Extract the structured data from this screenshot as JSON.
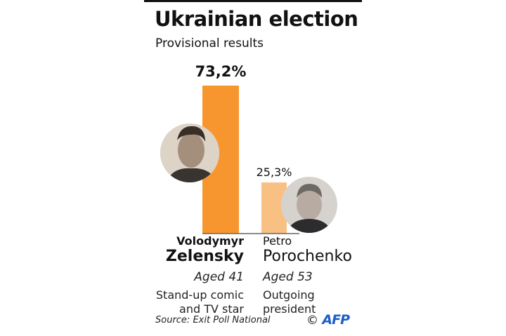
{
  "title": "Ukrainian election",
  "subtitle": "Provisional results",
  "source": "Source: Exit Poll National",
  "credit": {
    "symbol": "©",
    "agency": "AFP"
  },
  "colors": {
    "zelensky": "#f7962f",
    "poroshenko": "#f9c083",
    "baseline": "#666666",
    "afp": "#1d5ec9"
  },
  "chart_data": {
    "type": "bar",
    "title": "Ukrainian election",
    "subtitle": "Provisional results",
    "categories": [
      "Volodymyr Zelensky",
      "Petro Porochenko"
    ],
    "values": [
      73.2,
      25.3
    ],
    "value_labels": [
      "73,2%",
      "25,3%"
    ],
    "ylim": [
      0,
      100
    ],
    "unit": "%",
    "grid": false
  },
  "candidates": [
    {
      "first": "Volodymyr",
      "last": "Zelensky",
      "age": "Aged 41",
      "desc1": "Stand-up comic",
      "desc2": "and TV star",
      "photo": "zelensky-photo"
    },
    {
      "first": "Petro",
      "last": "Porochenko",
      "age": "Aged 53",
      "desc1": "Outgoing",
      "desc2": "president",
      "photo": "poroshenko-photo"
    }
  ]
}
